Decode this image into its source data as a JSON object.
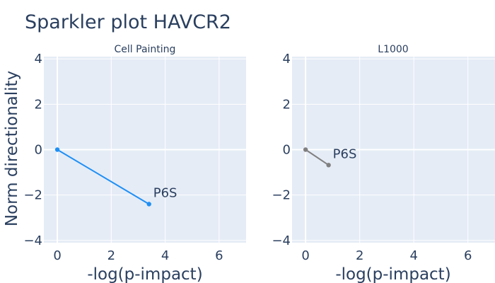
{
  "title": "Sparkler plot HAVCR2",
  "ylabel": "Norm directionality",
  "chart_data": [
    {
      "type": "line",
      "subtitle": "Cell Painting",
      "xlabel": "-log(p-impact)",
      "xlim": [
        -0.5,
        7
      ],
      "ylim": [
        -4.1,
        4.1
      ],
      "xticks": [
        "0",
        "2",
        "4",
        "6"
      ],
      "yticks": [
        "4",
        "2",
        "0",
        "−2",
        "−4"
      ],
      "grid": true,
      "color": "#1f8ff5",
      "series": [
        {
          "points": [
            {
              "x": 0,
              "y": 0
            },
            {
              "x": 3.4,
              "y": -2.4,
              "label": "P6S"
            }
          ]
        }
      ]
    },
    {
      "type": "line",
      "subtitle": "L1000",
      "xlabel": "-log(p-impact)",
      "xlim": [
        -0.5,
        7
      ],
      "ylim": [
        -4.1,
        4.1
      ],
      "xticks": [
        "0",
        "2",
        "4",
        "6"
      ],
      "yticks": [
        "4",
        "2",
        "0",
        "−2",
        "−4"
      ],
      "grid": true,
      "color": "#808080",
      "series": [
        {
          "points": [
            {
              "x": 0,
              "y": 0
            },
            {
              "x": 0.85,
              "y": -0.68,
              "label": "P6S"
            }
          ]
        }
      ]
    }
  ]
}
